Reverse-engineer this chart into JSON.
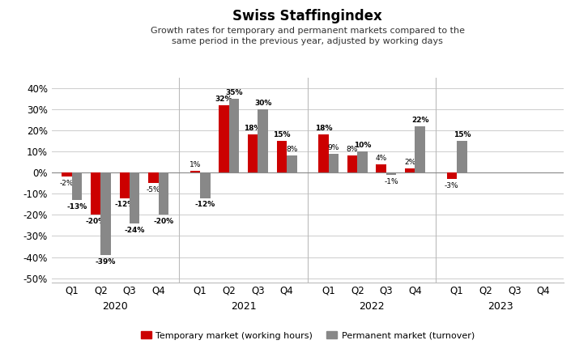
{
  "title": "Swiss Staffingindex",
  "subtitle": "Growth rates for temporary and permanent markets compared to the\nsame period in the previous year, adjusted by working days",
  "years": [
    "2020",
    "2021",
    "2022",
    "2023"
  ],
  "quarters": [
    "Q1",
    "Q2",
    "Q3",
    "Q4"
  ],
  "temporary": [
    -2,
    -20,
    -12,
    -5,
    1,
    32,
    18,
    15,
    18,
    8,
    4,
    2,
    -3,
    null,
    null,
    null
  ],
  "permanent": [
    -13,
    -39,
    -24,
    -20,
    -12,
    35,
    30,
    8,
    9,
    10,
    -1,
    22,
    15,
    null,
    null,
    null
  ],
  "temp_color": "#CC0000",
  "perm_color": "#888888",
  "ylim": [
    -52,
    45
  ],
  "yticks": [
    -50,
    -40,
    -30,
    -20,
    -10,
    0,
    10,
    20,
    30,
    40
  ],
  "background_color": "#ffffff",
  "legend_temp": "Temporary market (working hours)",
  "legend_perm": "Permanent market (turnover)"
}
